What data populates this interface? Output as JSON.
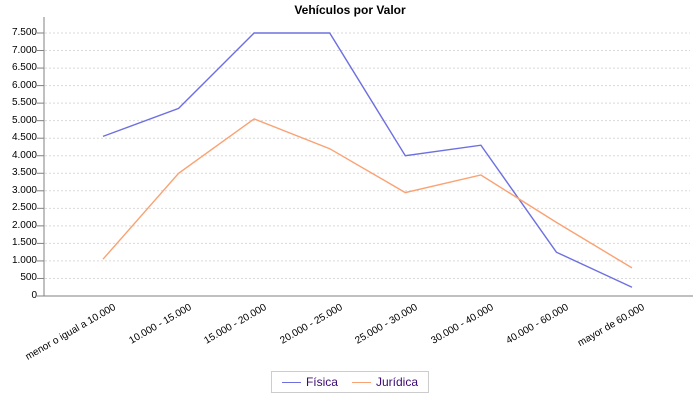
{
  "chart_data": {
    "type": "line",
    "title": "Vehículos por Valor",
    "categories": [
      "menor o igual a 10.000",
      "10.000 - 15.000",
      "15.000 - 20.000",
      "20.000 - 25.000",
      "25.000 - 30.000",
      "30.000 - 40.000",
      "40.000 - 60.000",
      "mayor de 60.000"
    ],
    "series": [
      {
        "name": "Física",
        "color": "#6e70e0",
        "values": [
          4550,
          5350,
          7500,
          7500,
          4000,
          4300,
          1250,
          250
        ]
      },
      {
        "name": "Jurídica",
        "color": "#faa273",
        "values": [
          1050,
          3500,
          5050,
          4200,
          2950,
          3450,
          2100,
          800
        ]
      }
    ],
    "ylim": [
      0,
      7500
    ],
    "ytick_step": 500,
    "ytick_labels": [
      "0",
      "500",
      "1.000",
      "1.500",
      "2.000",
      "2.500",
      "3.000",
      "3.500",
      "4.000",
      "4.500",
      "5.000",
      "5.500",
      "6.000",
      "6.500",
      "7.000",
      "7.500"
    ],
    "xlabel": "",
    "ylabel": "",
    "grid": "horizontal-dashed",
    "legend_position": "bottom-center"
  },
  "colors": {
    "background": "#ffffff",
    "axis": "#808080",
    "gridline": "#d9d9d9",
    "tick": "#808080",
    "text": "#000000",
    "legend_text": "#3b0a70",
    "legend_border": "#cccccc"
  }
}
